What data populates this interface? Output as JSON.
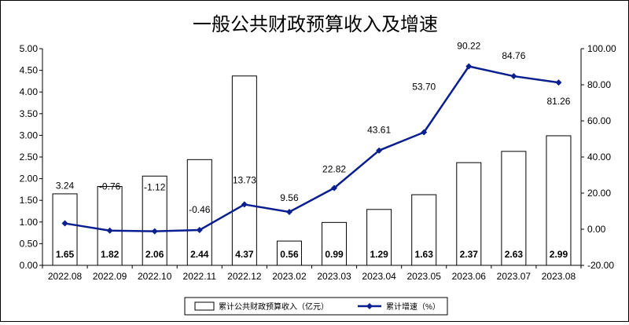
{
  "chart_data": {
    "type": "bar",
    "title": "一般公共财政预算收入及增速",
    "categories": [
      "2022.08",
      "2022.09",
      "2022.10",
      "2022.11",
      "2022.12",
      "2023.02",
      "2023.03",
      "2023.04",
      "2023.05",
      "2023.06",
      "2023.07",
      "2023.08"
    ],
    "series": [
      {
        "name": "累计公共财政预算收入（亿元）",
        "type": "bar",
        "axis": "left",
        "values": [
          1.65,
          1.82,
          2.06,
          2.44,
          4.37,
          0.56,
          0.99,
          1.29,
          1.63,
          2.37,
          2.63,
          2.99
        ],
        "labels": [
          "1.65",
          "1.82",
          "2.06",
          "2.44",
          "4.37",
          "0.56",
          "0.99",
          "1.29",
          "1.63",
          "2.37",
          "2.63",
          "2.99"
        ]
      },
      {
        "name": "累计增速（%）",
        "type": "line",
        "axis": "right",
        "values": [
          3.24,
          -0.76,
          -1.12,
          -0.46,
          13.73,
          9.56,
          22.82,
          43.61,
          53.7,
          90.22,
          84.76,
          81.26
        ],
        "labels": [
          "3.24",
          "-0.76",
          "-1.12",
          "-0.46",
          "13.73",
          "9.56",
          "22.82",
          "43.61",
          "53.70",
          "90.22",
          "84.76",
          "81.26"
        ],
        "color": "#0a1f8f"
      }
    ],
    "left_axis": {
      "ylim": [
        0,
        5
      ],
      "ticks": [
        "0.00",
        "0.50",
        "1.00",
        "1.50",
        "2.00",
        "2.50",
        "3.00",
        "3.50",
        "4.00",
        "4.50",
        "5.00"
      ]
    },
    "right_axis": {
      "ylim": [
        -20,
        100
      ],
      "ticks": [
        "-20.00",
        "0.00",
        "20.00",
        "40.00",
        "60.00",
        "80.00",
        "100.00"
      ]
    },
    "grid": false,
    "legend_position": "bottom-center"
  }
}
